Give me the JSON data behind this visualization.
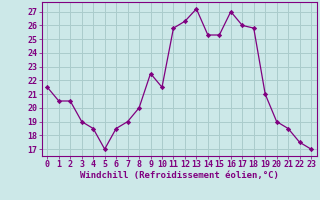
{
  "hours": [
    0,
    1,
    2,
    3,
    4,
    5,
    6,
    7,
    8,
    9,
    10,
    11,
    12,
    13,
    14,
    15,
    16,
    17,
    18,
    19,
    20,
    21,
    22,
    23
  ],
  "values": [
    21.5,
    20.5,
    20.5,
    19.0,
    18.5,
    17.0,
    18.5,
    19.0,
    20.0,
    22.5,
    21.5,
    25.8,
    26.3,
    27.2,
    25.3,
    25.3,
    27.0,
    26.0,
    25.8,
    21.0,
    19.0,
    18.5,
    17.5,
    17.0
  ],
  "line_color": "#800080",
  "marker": "D",
  "marker_size": 2.2,
  "bg_color": "#cce8e8",
  "grid_color": "#aacccc",
  "ylabel_ticks": [
    17,
    18,
    19,
    20,
    21,
    22,
    23,
    24,
    25,
    26,
    27
  ],
  "xlabel": "Windchill (Refroidissement éolien,°C)",
  "xlabel_fontsize": 6.5,
  "tick_fontsize": 6,
  "ylim": [
    16.5,
    27.7
  ],
  "xlim": [
    -0.5,
    23.5
  ]
}
